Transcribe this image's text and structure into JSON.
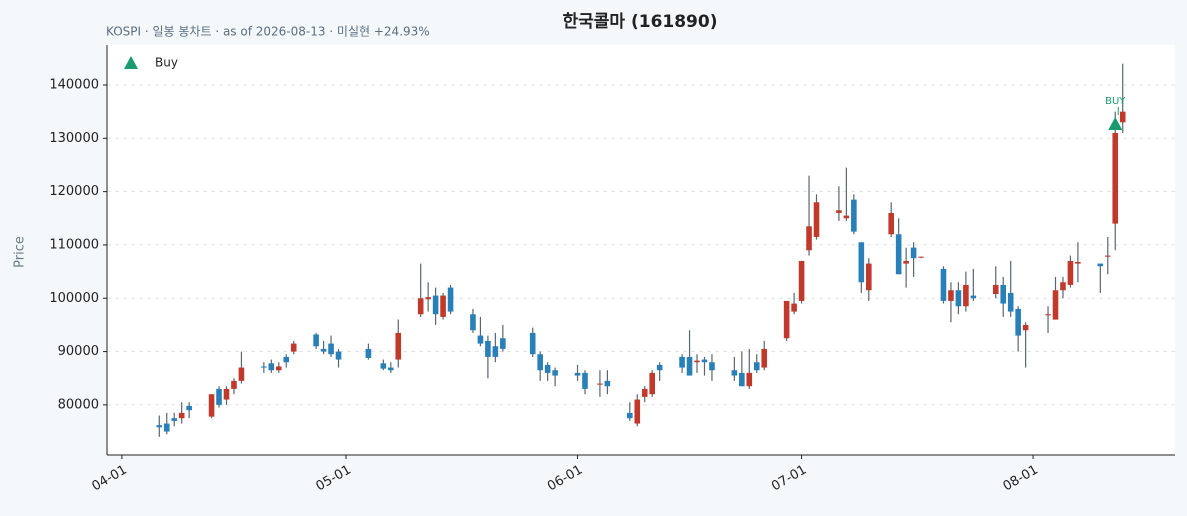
{
  "chart_data": {
    "type": "candlestick",
    "title": "한국콜마 (161890)",
    "subtitle": "KOSPI · 일봉 봉차트 · as of 2026-08-13 · 미실현 +24.93%",
    "y_label": "Price",
    "up_color": "#c0392b",
    "down_color": "#2980b9",
    "xlim": [
      "03-30",
      "08-20"
    ],
    "xticks": [
      "04-01",
      "05-01",
      "06-01",
      "07-01",
      "08-01"
    ],
    "ylim": [
      70600,
      147500
    ],
    "yticks": [
      80000,
      90000,
      100000,
      110000,
      120000,
      130000,
      140000
    ],
    "grid": true,
    "x": [
      "04-06",
      "04-07",
      "04-08",
      "04-09",
      "04-10",
      "04-13",
      "04-14",
      "04-15",
      "04-16",
      "04-17",
      "04-20",
      "04-21",
      "04-22",
      "04-23",
      "04-24",
      "04-27",
      "04-28",
      "04-29",
      "04-30",
      "05-04",
      "05-06",
      "05-07",
      "05-08",
      "05-11",
      "05-12",
      "05-13",
      "05-14",
      "05-15",
      "05-18",
      "05-19",
      "05-20",
      "05-21",
      "05-22",
      "05-26",
      "05-27",
      "05-28",
      "05-29",
      "06-01",
      "06-02",
      "06-04",
      "06-05",
      "06-08",
      "06-09",
      "06-10",
      "06-11",
      "06-12",
      "06-15",
      "06-16",
      "06-17",
      "06-18",
      "06-19",
      "06-22",
      "06-23",
      "06-24",
      "06-25",
      "06-26",
      "06-29",
      "06-30",
      "07-01",
      "07-02",
      "07-03",
      "07-06",
      "07-07",
      "07-08",
      "07-09",
      "07-10",
      "07-13",
      "07-14",
      "07-15",
      "07-16",
      "07-17",
      "07-20",
      "07-21",
      "07-22",
      "07-23",
      "07-24",
      "07-27",
      "07-28",
      "07-29",
      "07-30",
      "07-31",
      "08-03",
      "08-04",
      "08-05",
      "08-06",
      "08-07",
      "08-10",
      "08-11",
      "08-12",
      "08-13"
    ],
    "open": [
      76200,
      76500,
      77500,
      77500,
      79800,
      77800,
      83000,
      81000,
      83000,
      84500,
      87200,
      87800,
      86500,
      89000,
      90000,
      93200,
      90500,
      91500,
      90000,
      90500,
      87800,
      87000,
      88500,
      97000,
      99800,
      100500,
      96500,
      102000,
      97000,
      93000,
      92000,
      91000,
      92500,
      93500,
      89500,
      87500,
      86500,
      86000,
      86000,
      83800,
      84500,
      78500,
      76500,
      81500,
      82000,
      87500,
      89000,
      89000,
      88000,
      88500,
      88000,
      86500,
      86000,
      83500,
      88000,
      87000,
      92500,
      97500,
      99500,
      109000,
      111500,
      116000,
      115000,
      118500,
      110500,
      101500,
      112000,
      112000,
      106500,
      109500,
      107700,
      105500,
      99500,
      101500,
      98500,
      100500,
      100800,
      102500,
      101000,
      98000,
      94000,
      96800,
      96000,
      101500,
      102500,
      106500,
      106500,
      107800,
      114000,
      133000
    ],
    "high": [
      78000,
      78500,
      78500,
      80500,
      80500,
      82000,
      83500,
      83500,
      85000,
      90000,
      88000,
      88500,
      88000,
      89500,
      92000,
      93500,
      92000,
      93000,
      90500,
      91500,
      88500,
      88000,
      96000,
      106500,
      103000,
      102000,
      101000,
      102500,
      98000,
      96500,
      93000,
      93500,
      95000,
      94500,
      90000,
      88000,
      87000,
      87500,
      86500,
      86500,
      86500,
      80500,
      82000,
      83500,
      86500,
      88000,
      89500,
      94000,
      89500,
      89000,
      89500,
      89000,
      90000,
      90500,
      89500,
      92000,
      99500,
      101000,
      107000,
      123000,
      119500,
      121000,
      124500,
      119500,
      110500,
      107500,
      118000,
      115000,
      109500,
      110500,
      107800,
      106000,
      103000,
      103000,
      105000,
      105500,
      106000,
      104000,
      107000,
      98500,
      95500,
      98500,
      104000,
      104000,
      108000,
      110500,
      106500,
      111500,
      135000,
      144000
    ],
    "low": [
      74000,
      74500,
      76000,
      76500,
      77500,
      77500,
      79500,
      80000,
      82000,
      84000,
      86000,
      86000,
      86000,
      87000,
      89500,
      90500,
      89500,
      89000,
      87000,
      88500,
      86500,
      86000,
      87000,
      96500,
      97500,
      95000,
      96000,
      97000,
      93500,
      91000,
      85000,
      88000,
      90000,
      89000,
      84500,
      84500,
      83500,
      84500,
      82000,
      81500,
      82000,
      77000,
      76000,
      80500,
      81500,
      84500,
      86000,
      85500,
      86000,
      85500,
      84500,
      84500,
      83500,
      83000,
      86000,
      86500,
      92000,
      97000,
      99000,
      108000,
      111000,
      114500,
      114500,
      112000,
      101000,
      99500,
      111500,
      104500,
      102000,
      104000,
      107500,
      99000,
      95500,
      97000,
      97500,
      99500,
      100000,
      96500,
      96500,
      90000,
      87000,
      93500,
      96000,
      100000,
      102000,
      103000,
      101000,
      104500,
      109000,
      131000
    ],
    "close": [
      75800,
      75000,
      77000,
      78500,
      79000,
      82000,
      80000,
      83000,
      84500,
      87000,
      87000,
      86500,
      87200,
      88000,
      91500,
      91000,
      90000,
      89500,
      88500,
      88800,
      86800,
      86500,
      93500,
      100000,
      100200,
      97000,
      100500,
      97500,
      94000,
      91500,
      89000,
      89000,
      90500,
      89500,
      86500,
      86000,
      85500,
      85500,
      83000,
      84000,
      83500,
      77500,
      81000,
      83000,
      86000,
      86500,
      87000,
      85500,
      88300,
      88000,
      86500,
      85500,
      83500,
      86000,
      86500,
      90500,
      99500,
      99000,
      107000,
      113500,
      118000,
      116500,
      115500,
      112500,
      103000,
      106500,
      116000,
      104500,
      107000,
      107500,
      107800,
      99500,
      101500,
      98500,
      102500,
      100000,
      102500,
      99000,
      97500,
      93000,
      95000,
      97000,
      101500,
      103000,
      107000,
      106800,
      106000,
      108000,
      131000,
      135000
    ],
    "markers": [
      {
        "name": "Buy",
        "label": "BUY",
        "x": "08-12",
        "y": 132500,
        "color": "#1a9b6f"
      }
    ]
  }
}
